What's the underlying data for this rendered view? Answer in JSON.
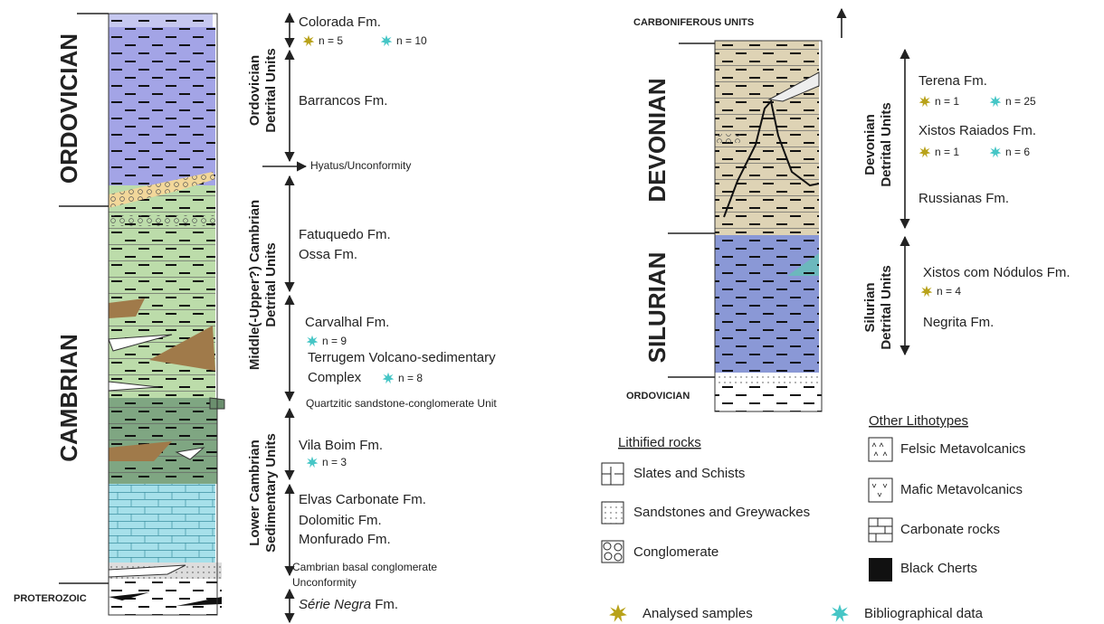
{
  "left_column": {
    "periods": [
      "ORDOVICIAN",
      "CAMBRIAN",
      "PROTEROZOIC"
    ],
    "unit_groups": [
      {
        "lines": [
          "Ordovician",
          "Detrital Units"
        ]
      },
      {
        "lines": [
          "Middle(-Upper?) Cambrian",
          "Detrital Units"
        ]
      },
      {
        "lines": [
          "Lower Cambrian",
          "Sedimentary Units"
        ]
      }
    ],
    "labels": [
      "Colorada Fm.",
      "Barrancos Fm.",
      "Hyatus/Unconformity",
      "Fatuquedo Fm.",
      "Ossa Fm.",
      "Carvalhal Fm.",
      "Terrugem Volcano-sedimentary",
      "Complex",
      "Quartzitic sandstone-conglomerate Unit",
      "Vila Boim Fm.",
      "Elvas Carbonate Fm.",
      "Dolomitic Fm.",
      "Monfurado Fm.",
      "Cambrian basal conglomerate",
      "Unconformity"
    ],
    "serie_negra": [
      "Série Negra",
      " Fm."
    ],
    "counts": [
      "n = 5",
      "n = 10",
      "n = 9",
      "n = 8",
      "n = 3"
    ]
  },
  "right_column": {
    "top_label": "CARBONIFEROUS UNITS",
    "periods": [
      "DEVONIAN",
      "SILURIAN",
      "ORDOVICIAN"
    ],
    "unit_groups": [
      {
        "lines": [
          "Devonian",
          "Detrital Units"
        ]
      },
      {
        "lines": [
          "Silurian",
          "Detrital Units"
        ]
      }
    ],
    "labels": [
      "Terena Fm.",
      "Xistos Raiados Fm.",
      "Russianas Fm.",
      "Xistos com Nódulos Fm.",
      "Negrita Fm."
    ],
    "counts": [
      "n = 1",
      "n = 25",
      "n = 1",
      "n = 6",
      "n = 4"
    ]
  },
  "legend": {
    "lithified_title": "Lithified rocks",
    "lithified": [
      "Slates and Schists",
      "Sandstones and Greywackes",
      "Conglomerate"
    ],
    "other_title": "Other Lithotypes",
    "other": [
      "Felsic Metavolcanics",
      "Mafic Metavolcanics",
      "Carbonate rocks",
      "Black Cherts"
    ],
    "analysed": "Analysed samples",
    "bibliographical": "Bibliographical data"
  }
}
